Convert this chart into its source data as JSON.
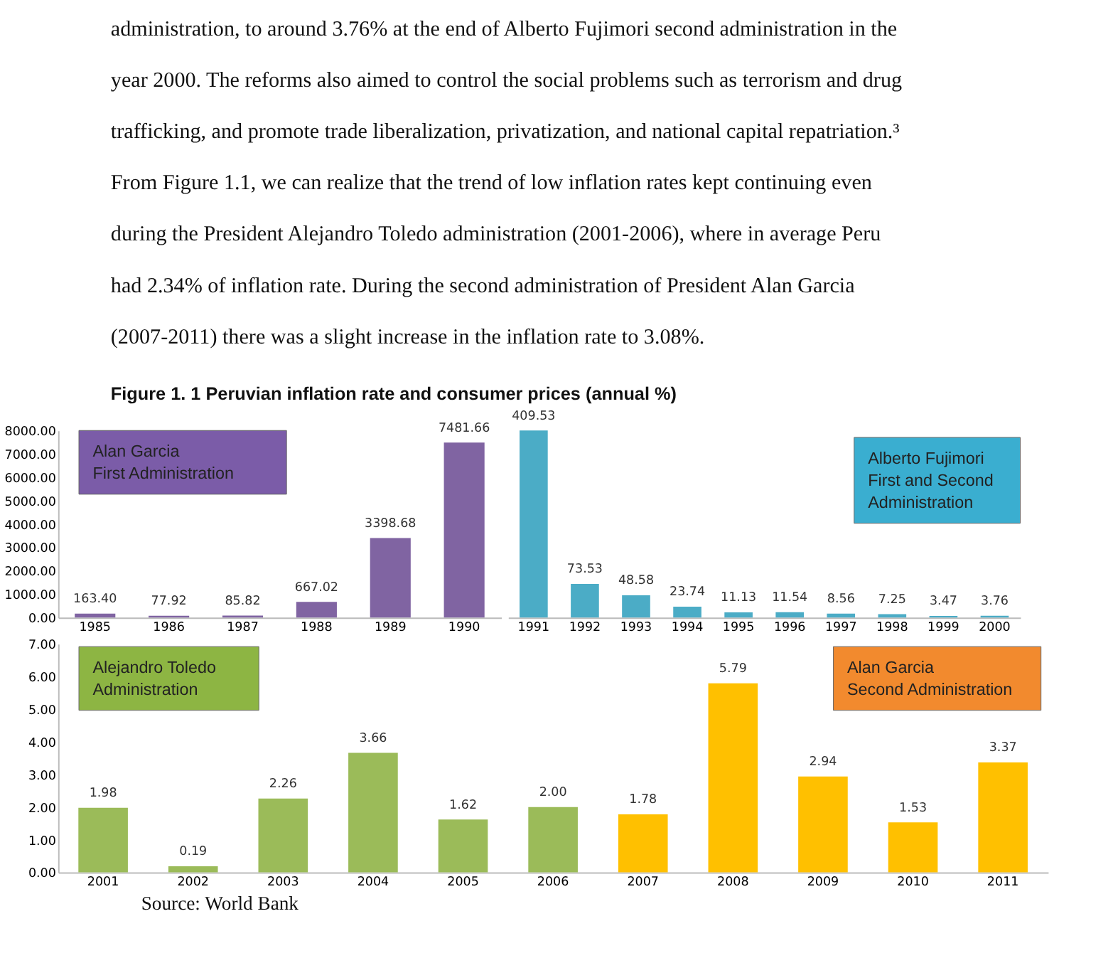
{
  "chart_data": [
    {
      "type": "bar",
      "title": "Figure 1. 1 Peruvian inflation rate and consumer prices (annual %)",
      "annotations": [
        "administration, to around 3.76% at the end of Alberto Fujimori second administration in the",
        "year 2000. The reforms also aimed to control the social problems such as terrorism and drug",
        "trafficking, and promote trade liberalization, privatization, and national capital repatriation.³",
        "From Figure 1.1, we can realize that the trend of low inflation rates kept continuing even",
        "during the President Alejandro Toledo administration (2001-2006), where in average Peru",
        "had 2.34% of inflation rate. During the second administration of President Alan Garcia",
        "(2007-2011) there was a slight increase in the inflation rate to 3.08%.",
        "Alan Garcia\nFirst Administration"
      ],
      "categories": [
        "1985",
        "1986",
        "1987",
        "1988",
        "1989",
        "1990"
      ],
      "values": [
        163.4,
        77.92,
        85.82,
        667.02,
        3398.68,
        7481.66
      ],
      "color": "#8064a2",
      "value_labels": [
        "163.40",
        "77.92",
        "85.82",
        "667.02",
        "3398.68",
        "7481.66"
      ],
      "ylim": [
        0,
        8000
      ],
      "yticks": [
        {
          "value": 0,
          "label": "0.00"
        },
        {
          "value": 1000,
          "label": "1000.00"
        },
        {
          "value": 2000,
          "label": "2000.00"
        },
        {
          "value": 3000,
          "label": "3000.00"
        },
        {
          "value": 4000,
          "label": "4000.00"
        },
        {
          "value": 5000,
          "label": "5000.00"
        },
        {
          "value": 6000,
          "label": "6000.00"
        },
        {
          "value": 7000,
          "label": "7000.00"
        },
        {
          "value": 8000,
          "label": "8000.00"
        }
      ],
      "grid": false
    },
    {
      "type": "bar",
      "annotations": [
        "Alberto Fujimori\nFirst and Second\nAdministration"
      ],
      "categories": [
        "1991",
        "1992",
        "1993",
        "1994",
        "1995",
        "1996",
        "1997",
        "1998",
        "1999",
        "2000"
      ],
      "values": [
        409.53,
        73.53,
        48.58,
        23.74,
        11.13,
        11.54,
        8.56,
        7.25,
        3.47,
        3.76
      ],
      "color": "#4bacc6",
      "data_labels": true,
      "tick_labels": "x",
      "grid": false
    },
    {
      "type": "bar",
      "annotations": [
        "Alejandro Toledo\nAdministration",
        "Alan Garcia\nSecond Administration",
        "Source: World Bank"
      ],
      "categories": [
        "2001",
        "2002",
        "2003",
        "2004",
        "2005",
        "2006",
        "2007",
        "2008",
        "2009",
        "2010",
        "2011"
      ],
      "values": [
        1.98,
        0.19,
        2.26,
        3.66,
        1.62,
        2.0,
        1.78,
        5.79,
        2.94,
        1.53,
        3.37
      ],
      "colors": [
        "#9bbb59",
        "#9bbb59",
        "#9bbb59",
        "#9bbb59",
        "#9bbb59",
        "#9bbb59",
        "#ffc000",
        "#ffc000",
        "#ffc000",
        "#ffc000",
        "#ffc000"
      ],
      "value_labels": [
        "1.98",
        "0.19",
        "2.26",
        "3.66",
        "1.62",
        "2.00",
        "1.78",
        "5.79",
        "2.94",
        "1.53",
        "3.37"
      ],
      "ylim": [
        0,
        7
      ],
      "yticks": [
        {
          "value": 0,
          "label": "0.00"
        },
        {
          "value": 1,
          "label": "1.00"
        },
        {
          "value": 2,
          "label": "2.00"
        },
        {
          "value": 3,
          "label": "3.00"
        },
        {
          "value": 4,
          "label": "4.00"
        },
        {
          "value": 5,
          "label": "5.00"
        },
        {
          "value": 6,
          "label": "6.00"
        },
        {
          "value": 7,
          "label": "7.00"
        }
      ],
      "grid": false
    }
  ]
}
